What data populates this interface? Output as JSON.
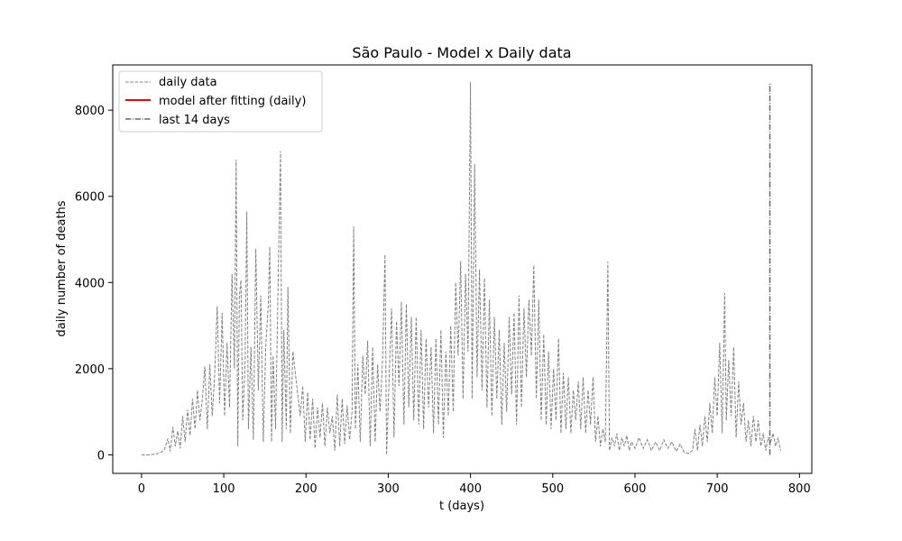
{
  "chart_data": {
    "type": "line",
    "title": "São Paulo - Model x Daily data",
    "xlabel": "t (days)",
    "ylabel": "daily number of deaths",
    "xlim": [
      -35,
      815
    ],
    "ylim": [
      -430,
      9050
    ],
    "x_ticks": [
      0,
      100,
      200,
      300,
      400,
      500,
      600,
      700,
      800
    ],
    "y_ticks": [
      0,
      2000,
      4000,
      6000,
      8000
    ],
    "grid": false,
    "legend_position": "top-left",
    "legend": [
      {
        "label": "daily data",
        "style": "dashed",
        "color": "#808080"
      },
      {
        "label": "model after fitting (daily)",
        "style": "solid",
        "color": "#ff0000"
      },
      {
        "label": "last 14 days",
        "style": "dashdot",
        "color": "#696969"
      }
    ],
    "series": [
      {
        "name": "daily data",
        "style": "dashed",
        "color": "#808080",
        "points": [
          [
            0,
            0
          ],
          [
            10,
            0
          ],
          [
            18,
            20
          ],
          [
            24,
            60
          ],
          [
            28,
            120
          ],
          [
            32,
            380
          ],
          [
            35,
            80
          ],
          [
            38,
            650
          ],
          [
            41,
            200
          ],
          [
            44,
            550
          ],
          [
            47,
            150
          ],
          [
            50,
            900
          ],
          [
            53,
            300
          ],
          [
            56,
            1050
          ],
          [
            59,
            450
          ],
          [
            62,
            1300
          ],
          [
            65,
            600
          ],
          [
            68,
            1500
          ],
          [
            71,
            800
          ],
          [
            74,
            1300
          ],
          [
            77,
            2050
          ],
          [
            80,
            600
          ],
          [
            83,
            2100
          ],
          [
            86,
            900
          ],
          [
            89,
            1900
          ],
          [
            92,
            3450
          ],
          [
            95,
            1200
          ],
          [
            98,
            3300
          ],
          [
            101,
            900
          ],
          [
            104,
            2600
          ],
          [
            107,
            1100
          ],
          [
            110,
            4200
          ],
          [
            113,
            2000
          ],
          [
            115,
            6850
          ],
          [
            117,
            200
          ],
          [
            119,
            3700
          ],
          [
            121,
            4050
          ],
          [
            123,
            800
          ],
          [
            126,
            2200
          ],
          [
            128,
            5650
          ],
          [
            130,
            600
          ],
          [
            133,
            2500
          ],
          [
            136,
            350
          ],
          [
            139,
            4780
          ],
          [
            142,
            1500
          ],
          [
            145,
            3700
          ],
          [
            148,
            300
          ],
          [
            151,
            2500
          ],
          [
            154,
            3450
          ],
          [
            156,
            4830
          ],
          [
            158,
            300
          ],
          [
            160,
            2300
          ],
          [
            163,
            600
          ],
          [
            166,
            3900
          ],
          [
            169,
            7050
          ],
          [
            171,
            300
          ],
          [
            173,
            2900
          ],
          [
            176,
            600
          ],
          [
            178,
            3900
          ],
          [
            181,
            500
          ],
          [
            184,
            2400
          ],
          [
            187,
            1900
          ],
          [
            190,
            1400
          ],
          [
            193,
            900
          ],
          [
            196,
            1600
          ],
          [
            199,
            300
          ],
          [
            202,
            1450
          ],
          [
            205,
            350
          ],
          [
            208,
            1300
          ],
          [
            211,
            150
          ],
          [
            214,
            1100
          ],
          [
            217,
            400
          ],
          [
            220,
            1200
          ],
          [
            223,
            200
          ],
          [
            226,
            1100
          ],
          [
            229,
            500
          ],
          [
            232,
            900
          ],
          [
            235,
            100
          ],
          [
            238,
            1400
          ],
          [
            241,
            200
          ],
          [
            244,
            1300
          ],
          [
            247,
            250
          ],
          [
            250,
            1150
          ],
          [
            253,
            350
          ],
          [
            256,
            1000
          ],
          [
            258,
            5300
          ],
          [
            260,
            600
          ],
          [
            263,
            2100
          ],
          [
            266,
            300
          ],
          [
            269,
            2300
          ],
          [
            272,
            1400
          ],
          [
            275,
            2650
          ],
          [
            278,
            200
          ],
          [
            281,
            2500
          ],
          [
            284,
            300
          ],
          [
            287,
            2100
          ],
          [
            290,
            1000
          ],
          [
            293,
            2200
          ],
          [
            296,
            4650
          ],
          [
            298,
            0
          ],
          [
            301,
            1800
          ],
          [
            304,
            3400
          ],
          [
            307,
            400
          ],
          [
            310,
            3100
          ],
          [
            313,
            1600
          ],
          [
            316,
            3550
          ],
          [
            319,
            700
          ],
          [
            322,
            3500
          ],
          [
            325,
            1100
          ],
          [
            328,
            3200
          ],
          [
            331,
            800
          ],
          [
            334,
            3200
          ],
          [
            337,
            700
          ],
          [
            340,
            2900
          ],
          [
            343,
            600
          ],
          [
            346,
            2700
          ],
          [
            349,
            1100
          ],
          [
            352,
            2500
          ],
          [
            355,
            500
          ],
          [
            358,
            2700
          ],
          [
            361,
            700
          ],
          [
            364,
            2900
          ],
          [
            367,
            400
          ],
          [
            370,
            2400
          ],
          [
            373,
            900
          ],
          [
            376,
            3000
          ],
          [
            379,
            1000
          ],
          [
            382,
            4000
          ],
          [
            385,
            2300
          ],
          [
            388,
            4500
          ],
          [
            391,
            1300
          ],
          [
            394,
            4200
          ],
          [
            397,
            2400
          ],
          [
            400,
            8650
          ],
          [
            402,
            1300
          ],
          [
            405,
            6750
          ],
          [
            408,
            1800
          ],
          [
            411,
            4300
          ],
          [
            414,
            1500
          ],
          [
            417,
            4100
          ],
          [
            420,
            1100
          ],
          [
            423,
            3600
          ],
          [
            426,
            900
          ],
          [
            429,
            3200
          ],
          [
            432,
            1300
          ],
          [
            435,
            2900
          ],
          [
            438,
            700
          ],
          [
            441,
            2600
          ],
          [
            444,
            1000
          ],
          [
            447,
            3200
          ],
          [
            450,
            1400
          ],
          [
            453,
            3300
          ],
          [
            456,
            700
          ],
          [
            459,
            3700
          ],
          [
            462,
            1100
          ],
          [
            465,
            3400
          ],
          [
            468,
            1800
          ],
          [
            471,
            3600
          ],
          [
            474,
            2300
          ],
          [
            477,
            4400
          ],
          [
            480,
            1300
          ],
          [
            483,
            3600
          ],
          [
            486,
            800
          ],
          [
            489,
            2800
          ],
          [
            492,
            700
          ],
          [
            495,
            2400
          ],
          [
            498,
            600
          ],
          [
            501,
            2000
          ],
          [
            504,
            800
          ],
          [
            507,
            2700
          ],
          [
            510,
            500
          ],
          [
            513,
            1900
          ],
          [
            516,
            600
          ],
          [
            519,
            1800
          ],
          [
            522,
            500
          ],
          [
            525,
            1500
          ],
          [
            528,
            800
          ],
          [
            531,
            1700
          ],
          [
            534,
            600
          ],
          [
            537,
            1800
          ],
          [
            540,
            500
          ],
          [
            543,
            1500
          ],
          [
            546,
            700
          ],
          [
            549,
            1800
          ],
          [
            552,
            300
          ],
          [
            555,
            900
          ],
          [
            558,
            200
          ],
          [
            561,
            600
          ],
          [
            564,
            300
          ],
          [
            567,
            4480
          ],
          [
            569,
            100
          ],
          [
            572,
            400
          ],
          [
            575,
            200
          ],
          [
            578,
            500
          ],
          [
            581,
            100
          ],
          [
            584,
            400
          ],
          [
            587,
            200
          ],
          [
            590,
            450
          ],
          [
            593,
            100
          ],
          [
            596,
            300
          ],
          [
            600,
            150
          ],
          [
            605,
            400
          ],
          [
            610,
            150
          ],
          [
            615,
            350
          ],
          [
            620,
            100
          ],
          [
            625,
            300
          ],
          [
            630,
            100
          ],
          [
            635,
            350
          ],
          [
            640,
            150
          ],
          [
            645,
            300
          ],
          [
            650,
            80
          ],
          [
            655,
            250
          ],
          [
            660,
            50
          ],
          [
            665,
            30
          ],
          [
            670,
            100
          ],
          [
            673,
            600
          ],
          [
            676,
            100
          ],
          [
            679,
            700
          ],
          [
            682,
            200
          ],
          [
            685,
            900
          ],
          [
            688,
            300
          ],
          [
            691,
            1200
          ],
          [
            694,
            500
          ],
          [
            697,
            1800
          ],
          [
            700,
            900
          ],
          [
            703,
            2600
          ],
          [
            706,
            500
          ],
          [
            709,
            3750
          ],
          [
            711,
            800
          ],
          [
            714,
            2200
          ],
          [
            717,
            900
          ],
          [
            720,
            2500
          ],
          [
            723,
            400
          ],
          [
            726,
            1700
          ],
          [
            729,
            700
          ],
          [
            732,
            1200
          ],
          [
            735,
            300
          ],
          [
            738,
            800
          ],
          [
            741,
            200
          ],
          [
            744,
            900
          ],
          [
            747,
            300
          ],
          [
            750,
            800
          ],
          [
            753,
            200
          ],
          [
            756,
            500
          ],
          [
            759,
            100
          ],
          [
            762,
            400
          ],
          [
            765,
            300
          ],
          [
            768,
            500
          ],
          [
            771,
            200
          ],
          [
            774,
            400
          ],
          [
            777,
            100
          ]
        ]
      },
      {
        "name": "last 14 days",
        "style": "dashdot",
        "color": "#696969",
        "points": [
          [
            764,
            0
          ],
          [
            764,
            8650
          ]
        ]
      }
    ]
  }
}
